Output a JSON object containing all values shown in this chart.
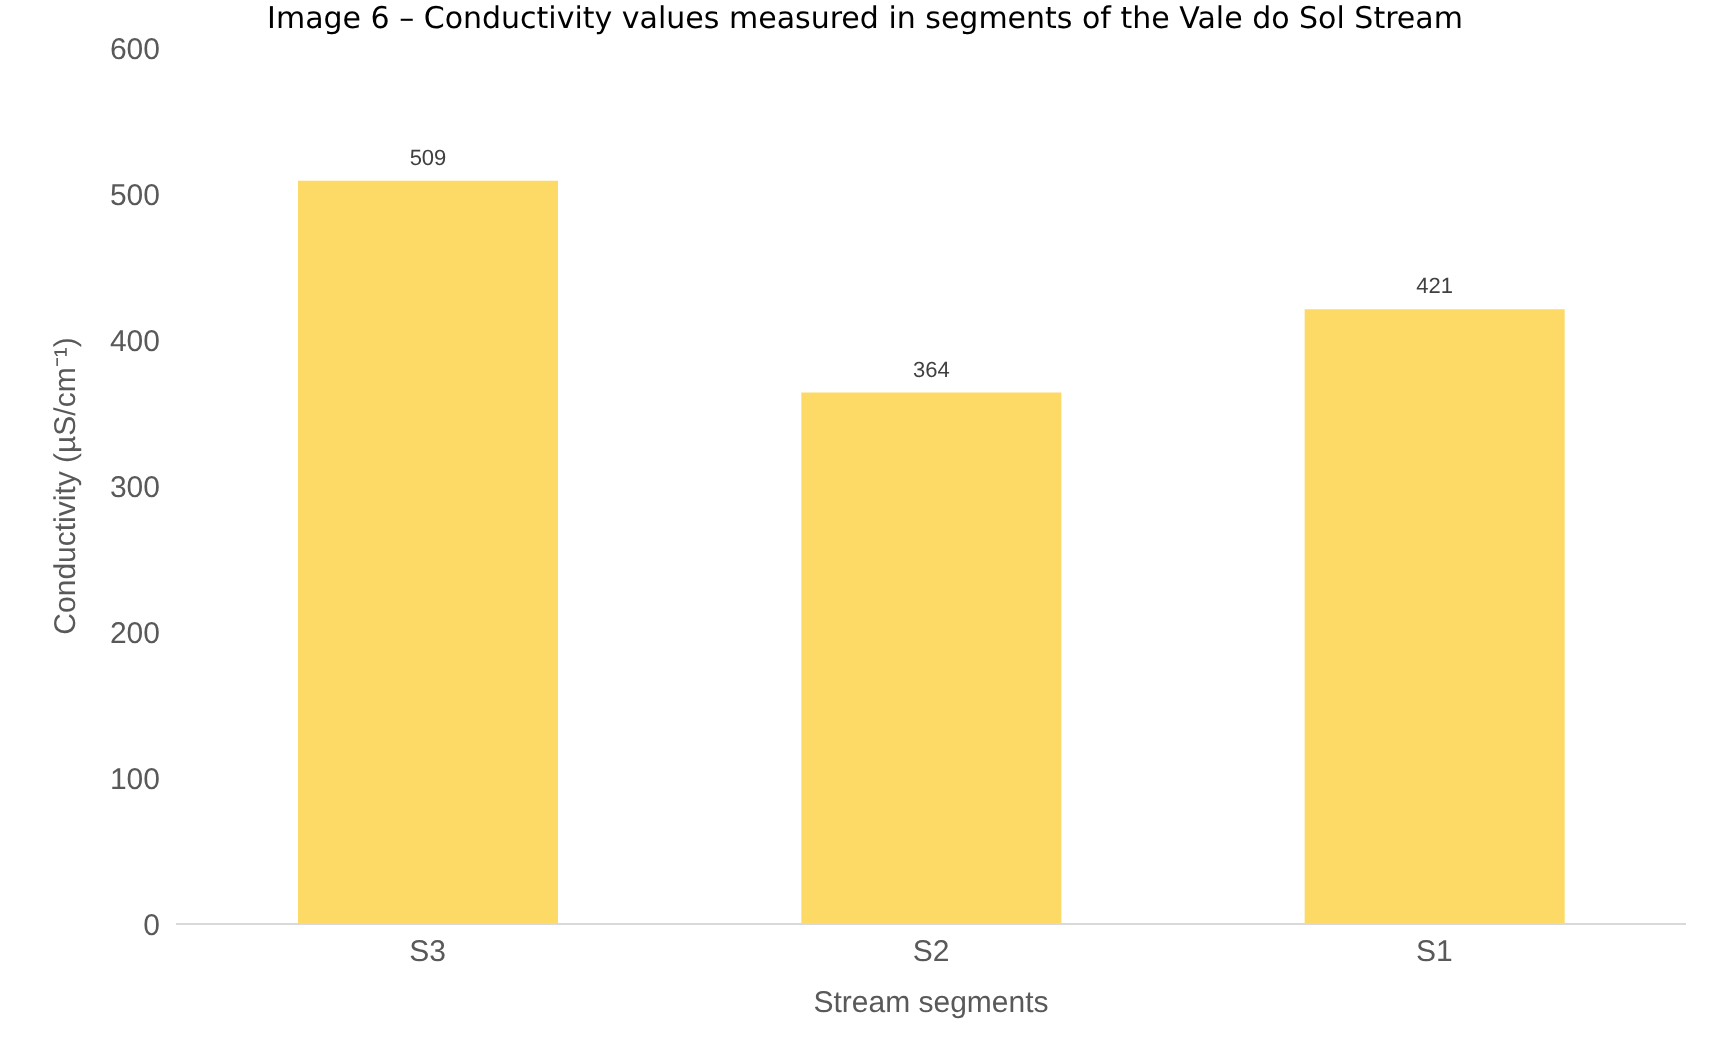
{
  "chart_data": {
    "type": "bar",
    "title": "Image 6 – Conductivity values measured in segments of the Vale do Sol Stream",
    "xlabel": "Stream segments",
    "ylabel": "Conductivity (µS/cm⁻¹)",
    "categories": [
      "S3",
      "S2",
      "S1"
    ],
    "values": [
      509,
      364,
      421
    ],
    "color": "#fdd966",
    "ylim": [
      0,
      600
    ],
    "yticks": [
      0,
      100,
      200,
      300,
      400,
      500,
      600
    ],
    "grid": false,
    "data_labels": true
  }
}
